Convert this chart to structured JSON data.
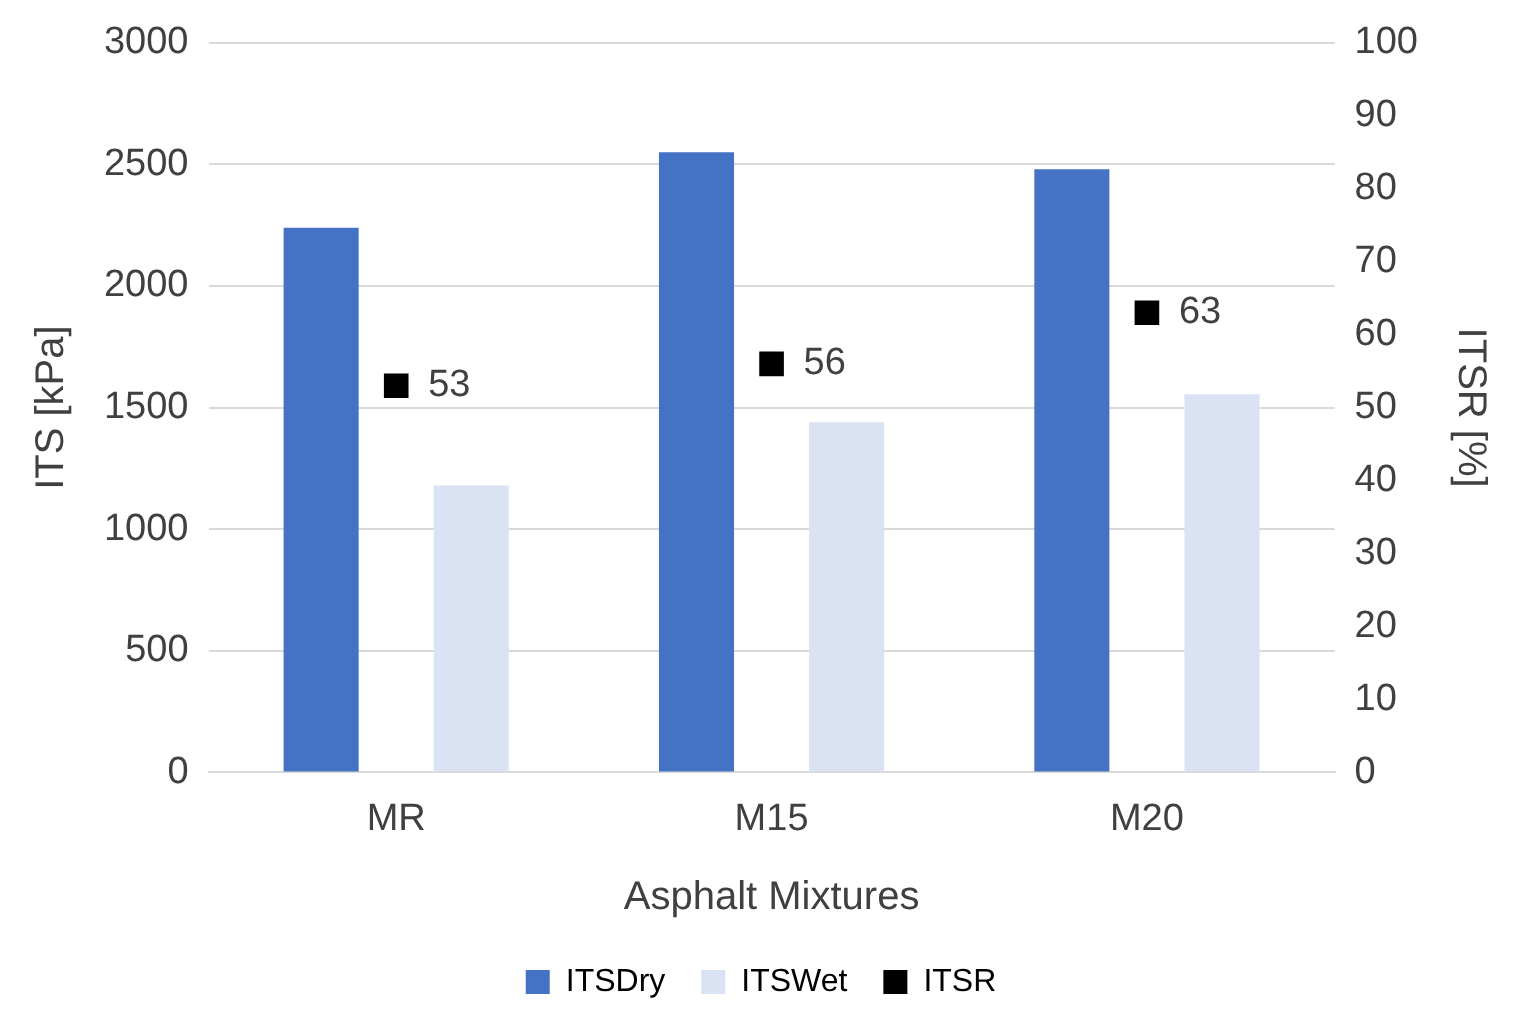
{
  "chart_data": {
    "type": "bar",
    "xlabel": "Asphalt Mixtures",
    "ylabel": "ITS [kPa]",
    "y2label": "ITSR [%]",
    "categories": [
      "MR",
      "M15",
      "M20"
    ],
    "series": [
      {
        "name": "ITSDry",
        "color": "#4472c4",
        "values": [
          2240,
          2550,
          2480
        ]
      },
      {
        "name": "ITSWet",
        "color": "#dae3f3",
        "values": [
          1180,
          1440,
          1555
        ]
      },
      {
        "name": "ITSR",
        "type": "scatter",
        "axis": "y2",
        "color": "#000000",
        "values": [
          53,
          56,
          63
        ],
        "value_labels": [
          "53",
          "56",
          "63"
        ]
      }
    ],
    "ylim": [
      0,
      3000
    ],
    "yticks": [
      0,
      500,
      1000,
      1500,
      2000,
      2500,
      3000
    ],
    "y2lim": [
      0,
      100
    ],
    "y2ticks": [
      0,
      10,
      20,
      30,
      40,
      50,
      60,
      70,
      80,
      90,
      100
    ],
    "grid": "y",
    "legend": "bottom",
    "marker": "square"
  }
}
